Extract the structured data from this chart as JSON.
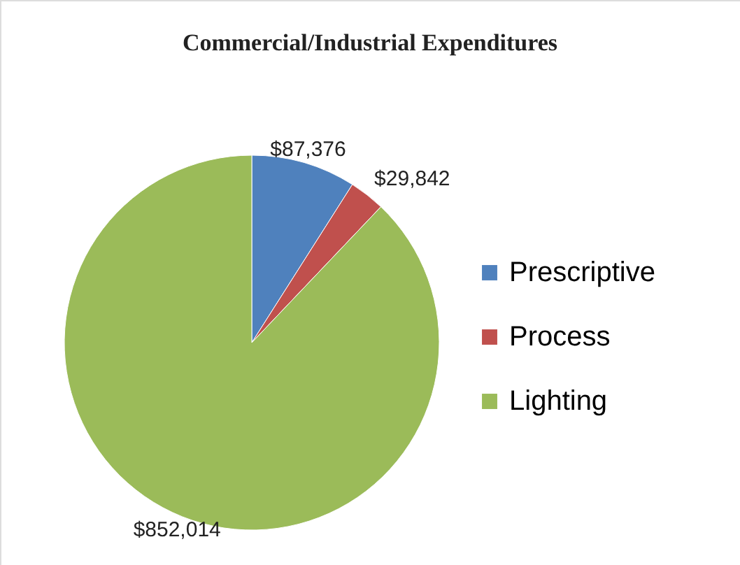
{
  "chart_data": {
    "type": "pie",
    "title": "Commercial/Industrial Expenditures",
    "categories": [
      "Prescriptive",
      "Process",
      "Lighting"
    ],
    "values": [
      87376,
      29842,
      852014
    ],
    "colors": [
      "#4f81bd",
      "#c0504d",
      "#9bbb59"
    ],
    "value_labels": [
      "$87,376",
      "$29,842",
      "$852,014"
    ],
    "legend": "right"
  }
}
